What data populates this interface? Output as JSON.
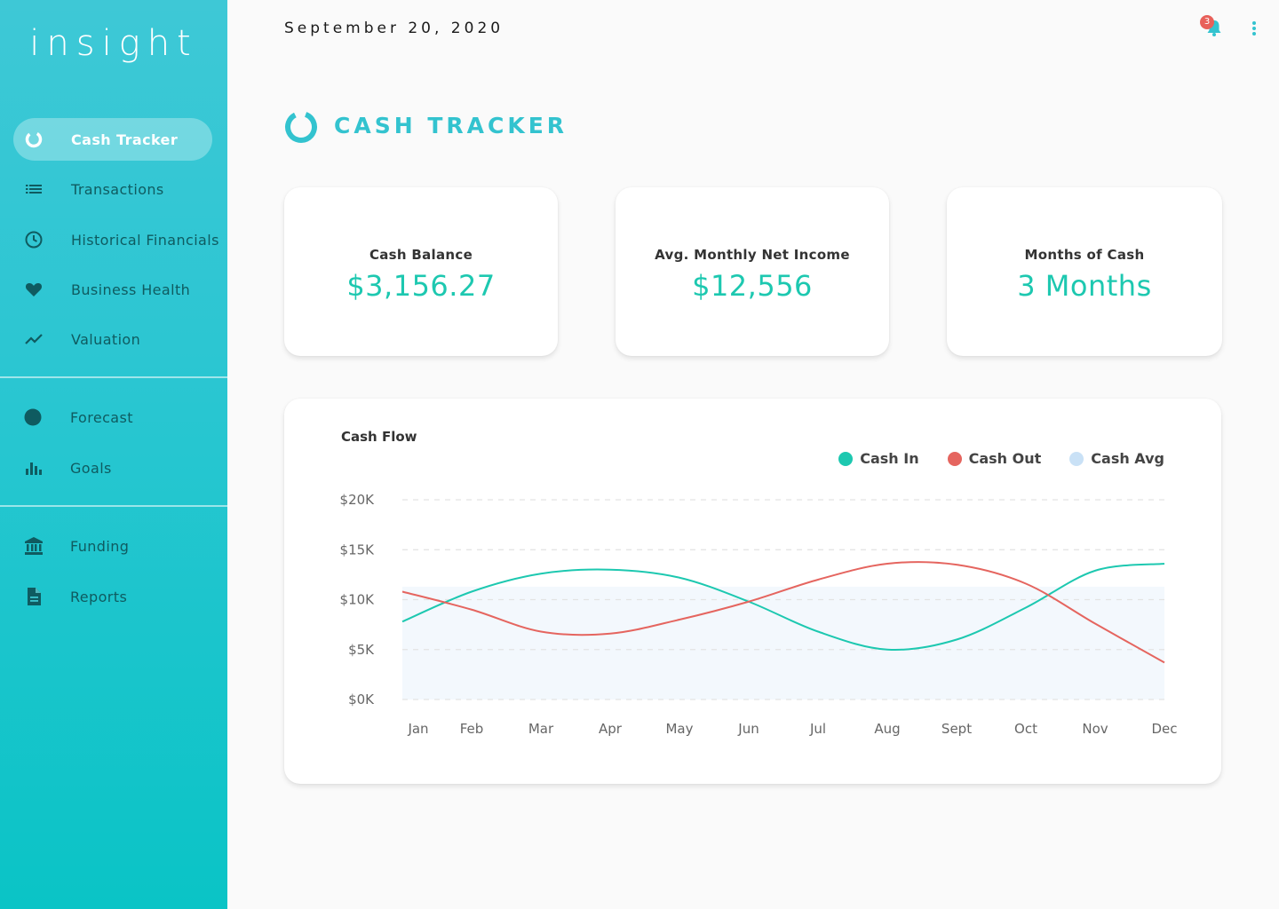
{
  "app": {
    "brand": "insight"
  },
  "sidebar": {
    "items": [
      {
        "label": "Cash Tracker",
        "icon": "donut-icon",
        "active": true
      },
      {
        "label": "Transactions",
        "icon": "list-icon"
      },
      {
        "label": "Historical Financials",
        "icon": "clock-icon"
      },
      {
        "label": "Business Health",
        "icon": "heart-icon"
      },
      {
        "label": "Valuation",
        "icon": "trend-line-icon"
      }
    ],
    "items2": [
      {
        "label": "Forecast",
        "icon": "circle-icon"
      },
      {
        "label": "Goals",
        "icon": "bar-chart-icon"
      }
    ],
    "items3": [
      {
        "label": "Funding",
        "icon": "bank-icon"
      },
      {
        "label": "Reports",
        "icon": "document-icon"
      }
    ]
  },
  "header": {
    "date": "September 20, 2020",
    "notification_count": "3"
  },
  "page": {
    "title": "CASH TRACKER"
  },
  "kpis": [
    {
      "label": "Cash Balance",
      "value": "$3,156.27"
    },
    {
      "label": "Avg. Monthly Net Income",
      "value": "$12,556"
    },
    {
      "label": "Months of Cash",
      "value": "3 Months"
    }
  ],
  "colors": {
    "accent": "#33c3cf",
    "cash_in": "#1dc8b0",
    "cash_out": "#e5655f",
    "cash_avg": "#c9e1f6",
    "value_text": "#1dc8b0"
  },
  "chart_data": {
    "type": "line",
    "title": "Cash Flow",
    "categories": [
      "Jan",
      "Feb",
      "Mar",
      "Apr",
      "May",
      "Jun",
      "Jul",
      "Aug",
      "Sept",
      "Oct",
      "Nov",
      "Dec"
    ],
    "y_ticks": [
      "$0K",
      "$5K",
      "$10K",
      "$15K",
      "$20K"
    ],
    "ylim": [
      0,
      20000
    ],
    "grid": true,
    "legend_position": "top-right",
    "series": [
      {
        "name": "Cash In",
        "color": "#1dc8b0",
        "values": [
          7800,
          10800,
          12600,
          13000,
          12200,
          9800,
          6800,
          5000,
          6000,
          9200,
          12900,
          13600
        ]
      },
      {
        "name": "Cash Out",
        "color": "#e5655f",
        "values": [
          10800,
          9000,
          6800,
          6600,
          8000,
          9800,
          12000,
          13600,
          13500,
          11600,
          7600,
          3700
        ]
      },
      {
        "name": "Cash Avg",
        "color": "#c9e1f6",
        "type": "area",
        "values": [
          11300,
          11300,
          11300,
          11300,
          11300,
          11300,
          11300,
          11300,
          11300,
          11300,
          11300,
          11300
        ]
      }
    ]
  }
}
